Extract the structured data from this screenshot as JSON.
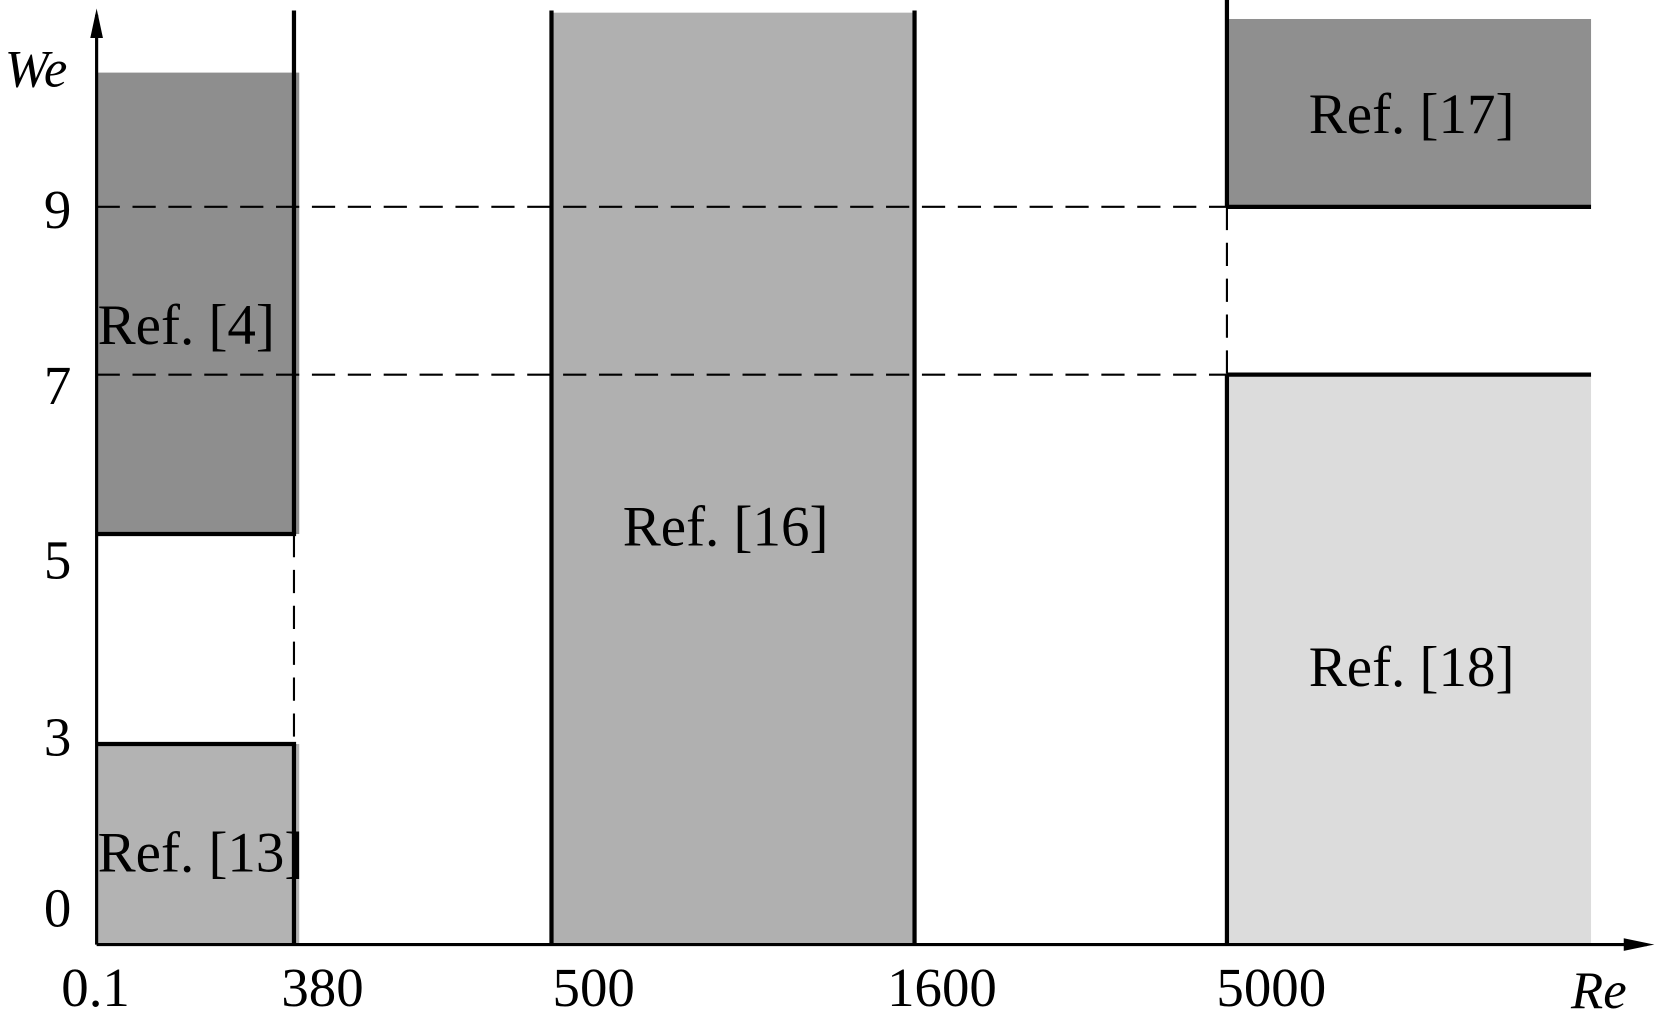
{
  "chart_data": {
    "type": "range-blocks",
    "xlabel": "Re",
    "ylabel": "We",
    "x_ticks": [
      "0.1",
      "380",
      "500",
      "1600",
      "5000"
    ],
    "y_ticks": [
      0,
      3,
      5,
      7,
      9
    ],
    "grid": "dashed reference lines at We = 7 and We = 9",
    "regions": [
      {
        "label": "Ref. [13]",
        "re": [
          "0.1",
          "380"
        ],
        "we": [
          0,
          3
        ],
        "color": "#b3b3b3"
      },
      {
        "label": "Ref. [4]",
        "re": [
          "0.1",
          "380"
        ],
        "we": [
          5,
          10.6
        ],
        "color": "#8e8e8e"
      },
      {
        "label": "Ref. [16]",
        "re": [
          "500",
          "1600"
        ],
        "we": [
          0,
          null
        ],
        "color": "#b0b0b0"
      },
      {
        "label": "Ref. [17]",
        "re": [
          "5000",
          null
        ],
        "we": [
          9,
          null
        ],
        "color": "#8f8f8f"
      },
      {
        "label": "Ref. [18]",
        "re": [
          "5000",
          null
        ],
        "we": [
          0,
          7
        ],
        "color": "#dcdcdc"
      }
    ]
  }
}
